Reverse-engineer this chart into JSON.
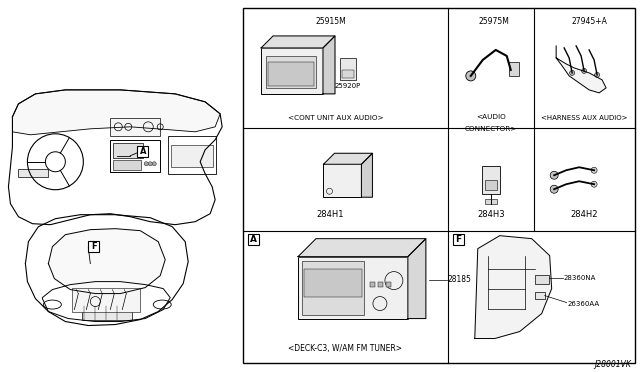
{
  "bg_color": "#ffffff",
  "line_color": "#000000",
  "diagram_code": "J28001VK",
  "panel_A_label": "A",
  "panel_F_label": "F",
  "part_28185": "28185",
  "part_28360NA": "28360NA",
  "part_26360AA": "26360AA",
  "part_284H1": "284H1",
  "caption_284H1": "<CONT UNIT AUX AUDIO>",
  "part_284H3": "284H3",
  "caption_284H3_line1": "<AUDIO",
  "caption_284H3_line2": "CONNECTOR>",
  "part_284H2": "284H2",
  "caption_284H2": "<HARNESS AUX AUDIO>",
  "part_25915M": "25915M",
  "part_25920P": "25920P",
  "part_25975M": "25975M",
  "part_27945A": "27945+A",
  "caption_A": "<DECK-C3, W/AM FM TUNER>"
}
